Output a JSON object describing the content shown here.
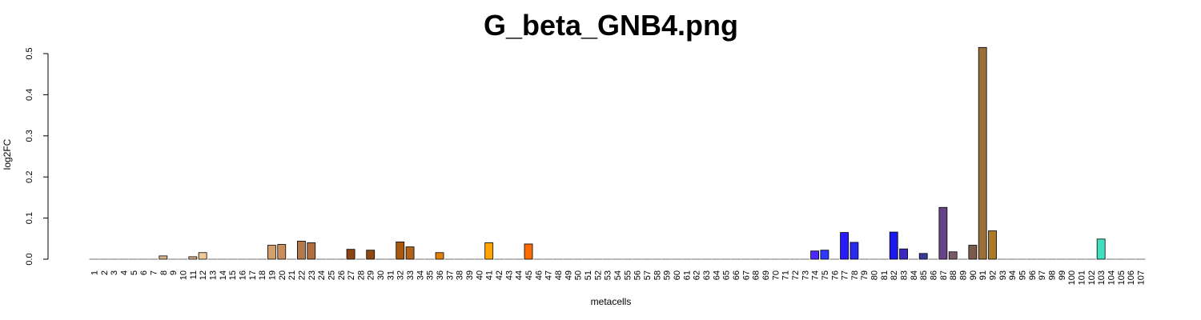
{
  "chart_data": {
    "type": "bar",
    "title": "G_beta_GNB4.png",
    "xlabel": "metacells",
    "ylabel": "log2FC",
    "ylim": [
      0,
      0.5
    ],
    "yticks": [
      0.0,
      0.1,
      0.2,
      0.3,
      0.4,
      0.5
    ],
    "ytick_labels": [
      "0.0",
      "0.1",
      "0.2",
      "0.3",
      "0.4",
      "0.5"
    ],
    "grid": false,
    "legend": "none",
    "categories": [
      "1",
      "2",
      "3",
      "4",
      "5",
      "6",
      "7",
      "8",
      "9",
      "10",
      "11",
      "12",
      "13",
      "14",
      "15",
      "16",
      "17",
      "18",
      "19",
      "20",
      "21",
      "22",
      "23",
      "24",
      "25",
      "26",
      "27",
      "28",
      "29",
      "30",
      "31",
      "32",
      "33",
      "34",
      "35",
      "36",
      "37",
      "38",
      "39",
      "40",
      "41",
      "42",
      "43",
      "44",
      "45",
      "46",
      "47",
      "48",
      "49",
      "50",
      "51",
      "52",
      "53",
      "54",
      "55",
      "56",
      "57",
      "58",
      "59",
      "60",
      "61",
      "62",
      "63",
      "64",
      "65",
      "66",
      "67",
      "68",
      "69",
      "70",
      "71",
      "72",
      "73",
      "74",
      "75",
      "76",
      "77",
      "78",
      "79",
      "80",
      "81",
      "82",
      "83",
      "84",
      "85",
      "86",
      "87",
      "88",
      "89",
      "90",
      "91",
      "92",
      "93",
      "94",
      "95",
      "96",
      "97",
      "98",
      "99",
      "100",
      "101",
      "102",
      "103",
      "104",
      "105",
      "106",
      "107"
    ],
    "values": [
      0,
      0,
      0,
      0,
      0,
      0,
      0,
      0.008,
      0,
      0,
      0.006,
      0.016,
      0,
      0,
      0,
      0,
      0,
      0,
      0.034,
      0.036,
      0,
      0.044,
      0.04,
      0,
      0,
      0,
      0.024,
      0,
      0.022,
      0,
      0,
      0.042,
      0.03,
      0,
      0,
      0.016,
      0,
      0,
      0,
      0,
      0.04,
      0,
      0,
      0,
      0.037,
      0,
      0,
      0,
      0,
      0,
      0,
      0,
      0,
      0,
      0,
      0,
      0,
      0,
      0,
      0,
      0,
      0,
      0,
      0,
      0,
      0,
      0,
      0,
      0,
      0,
      0,
      0,
      0,
      0.02,
      0.022,
      0,
      0.065,
      0.041,
      0,
      0,
      0,
      0.066,
      0.025,
      0,
      0.014,
      0,
      0.126,
      0.018,
      0,
      0.034,
      0.515,
      0.069,
      0,
      0,
      0,
      0,
      0,
      0,
      0,
      0,
      0,
      0,
      0.049,
      0,
      0,
      0,
      0
    ],
    "colors": [
      "#888888",
      "#888888",
      "#888888",
      "#888888",
      "#888888",
      "#888888",
      "#888888",
      "#d8b48c",
      "#888888",
      "#888888",
      "#d8b48c",
      "#f0c898",
      "#888888",
      "#888888",
      "#888888",
      "#888888",
      "#888888",
      "#888888",
      "#d39e6a",
      "#c98e5c",
      "#888888",
      "#b27a4c",
      "#b06e40",
      "#888888",
      "#888888",
      "#888888",
      "#8b4513",
      "#888888",
      "#8e4a12",
      "#888888",
      "#888888",
      "#a8590e",
      "#b0621a",
      "#888888",
      "#888888",
      "#e0800c",
      "#888888",
      "#888888",
      "#888888",
      "#888888",
      "#ffa500",
      "#888888",
      "#888888",
      "#888888",
      "#ff6a00",
      "#888888",
      "#888888",
      "#888888",
      "#888888",
      "#888888",
      "#888888",
      "#888888",
      "#888888",
      "#888888",
      "#888888",
      "#888888",
      "#888888",
      "#888888",
      "#888888",
      "#888888",
      "#888888",
      "#888888",
      "#888888",
      "#888888",
      "#888888",
      "#888888",
      "#888888",
      "#888888",
      "#888888",
      "#888888",
      "#888888",
      "#888888",
      "#888888",
      "#4a2aff",
      "#2a3bff",
      "#888888",
      "#2a1aff",
      "#2a2aee",
      "#888888",
      "#888888",
      "#888888",
      "#1a1aee",
      "#3a2ac0",
      "#888888",
      "#3a3a99",
      "#888888",
      "#664488",
      "#7a5a6a",
      "#888888",
      "#7a5a48",
      "#9a6e3a",
      "#aa7a2a",
      "#888888",
      "#888888",
      "#888888",
      "#888888",
      "#888888",
      "#888888",
      "#888888",
      "#888888",
      "#888888",
      "#888888",
      "#40e0c0",
      "#888888",
      "#888888",
      "#888888",
      "#888888"
    ]
  }
}
